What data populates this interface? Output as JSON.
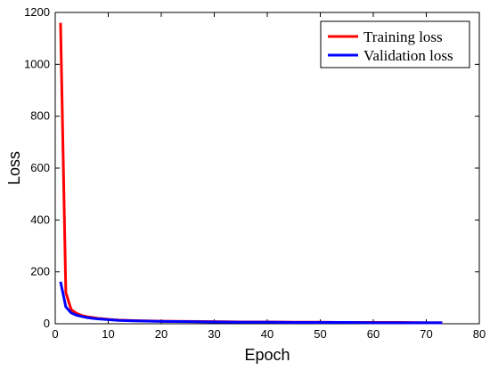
{
  "chart_data": {
    "type": "line",
    "title": "",
    "xlabel": "Epoch",
    "ylabel": "Loss",
    "xlim": [
      0,
      80
    ],
    "ylim": [
      0,
      1200
    ],
    "xticks": [
      0,
      10,
      20,
      30,
      40,
      50,
      60,
      70,
      80
    ],
    "yticks": [
      0,
      200,
      400,
      600,
      800,
      1000,
      1200
    ],
    "grid": false,
    "legend_position": "top-right",
    "series": [
      {
        "name": "Training loss",
        "color": "#ff0000",
        "x": [
          1,
          2,
          3,
          4,
          5,
          6,
          7,
          8,
          10,
          12,
          15,
          20,
          25,
          30,
          35,
          40,
          45,
          50,
          55,
          60,
          65,
          70,
          73
        ],
        "y": [
          1160,
          120,
          55,
          40,
          32,
          27,
          24,
          21,
          17,
          14,
          12,
          10,
          9,
          8,
          7,
          7,
          6,
          6,
          5,
          5,
          5,
          4,
          4
        ]
      },
      {
        "name": "Validation loss",
        "color": "#0000ff",
        "x": [
          1,
          2,
          3,
          4,
          5,
          6,
          7,
          8,
          10,
          12,
          15,
          20,
          25,
          30,
          35,
          40,
          45,
          50,
          55,
          60,
          65,
          70,
          73
        ],
        "y": [
          162,
          65,
          42,
          33,
          28,
          24,
          21,
          19,
          16,
          13,
          11,
          9,
          8,
          7,
          6,
          6,
          5,
          5,
          5,
          4,
          4,
          4,
          4
        ]
      }
    ]
  }
}
